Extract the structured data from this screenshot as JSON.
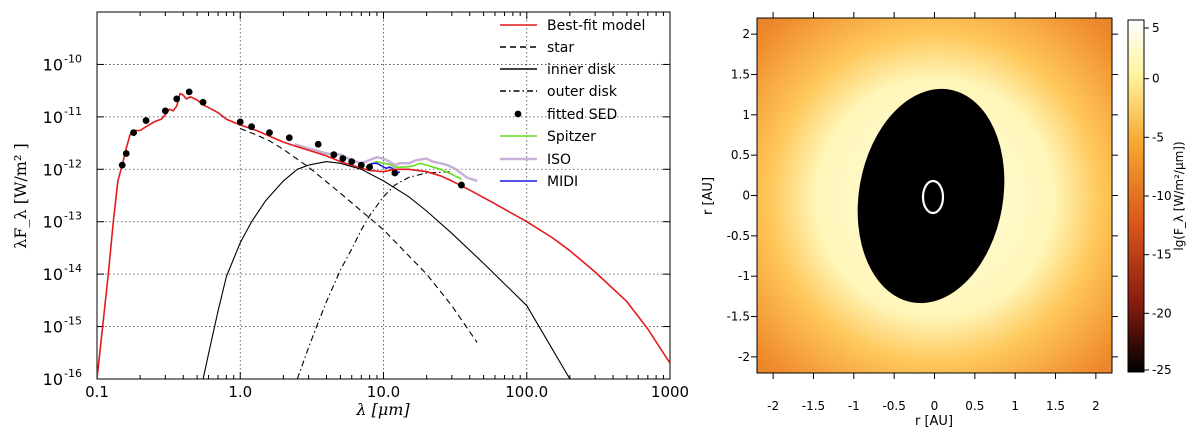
{
  "chart_data": [
    {
      "type": "line",
      "xlabel": "λ [μm]",
      "ylabel": "λF_λ [W/m² ]",
      "x_scale": "log",
      "y_scale": "log",
      "xlim": [
        0.1,
        1000
      ],
      "ylim": [
        1e-16,
        1e-09
      ],
      "xticks": [
        {
          "value": 0.1,
          "label": "0.1"
        },
        {
          "value": 1,
          "label": "1.0"
        },
        {
          "value": 10,
          "label": "10.0"
        },
        {
          "value": 100,
          "label": "100.0"
        },
        {
          "value": 1000,
          "label": "1000"
        }
      ],
      "yticks": [
        {
          "value": 1e-16,
          "base": "10",
          "exp": "-16"
        },
        {
          "value": 1e-15,
          "base": "10",
          "exp": "-15"
        },
        {
          "value": 1e-14,
          "base": "10",
          "exp": "-14"
        },
        {
          "value": 1e-13,
          "base": "10",
          "exp": "-13"
        },
        {
          "value": 1e-12,
          "base": "10",
          "exp": "-12"
        },
        {
          "value": 1e-11,
          "base": "10",
          "exp": "-11"
        },
        {
          "value": 1e-10,
          "base": "10",
          "exp": "-10"
        }
      ],
      "grid": true,
      "legend_position": "top-right",
      "series": [
        {
          "name": "Best-fit model",
          "color": "#e41a1c",
          "style": "solid",
          "x": [
            0.1,
            0.12,
            0.13,
            0.14,
            0.15,
            0.16,
            0.17,
            0.18,
            0.2,
            0.22,
            0.25,
            0.28,
            0.3,
            0.32,
            0.34,
            0.36,
            0.38,
            0.4,
            0.42,
            0.45,
            0.5,
            0.55,
            0.6,
            0.7,
            0.8,
            1.0,
            1.3,
            1.6,
            2.0,
            2.5,
            3.0,
            4.0,
            5.0,
            6.0,
            7.0,
            8.0,
            10,
            12,
            15,
            20,
            25,
            30,
            40,
            60,
            100,
            150,
            200,
            300,
            500,
            700,
            1000
          ],
          "y": [
            1e-16,
            1e-14,
            1e-13,
            6e-13,
            1.2e-12,
            2.5e-12,
            4.5e-12,
            5.5e-12,
            5.5e-12,
            6.5e-12,
            8e-12,
            9e-12,
            1.1e-11,
            1.4e-11,
            1.3e-11,
            1.6e-11,
            2.8e-11,
            2.6e-11,
            2.2e-11,
            2.4e-11,
            2.1e-11,
            1.7e-11,
            1.5e-11,
            1.2e-11,
            9e-12,
            7e-12,
            5.5e-12,
            4.3e-12,
            3.3e-12,
            2.7e-12,
            2.3e-12,
            1.8e-12,
            1.4e-12,
            1.2e-12,
            1.05e-12,
            9.5e-13,
            9e-13,
            1e-12,
            1e-12,
            9e-13,
            7.5e-13,
            6e-13,
            4e-13,
            2.2e-13,
            1e-13,
            5e-14,
            2.8e-14,
            1.1e-14,
            3e-15,
            9e-16,
            2e-16
          ]
        },
        {
          "name": "star",
          "color": "#000000",
          "style": "dashed",
          "x": [
            1.0,
            1.3,
            1.6,
            2.0,
            3.0,
            5.0,
            10,
            20,
            30,
            45
          ],
          "y": [
            6e-12,
            4.5e-12,
            3.5e-12,
            2.4e-12,
            1.1e-12,
            3.5e-13,
            7e-14,
            1e-14,
            2.5e-15,
            5e-16
          ]
        },
        {
          "name": "inner disk",
          "color": "#000000",
          "style": "solid",
          "x": [
            0.55,
            0.6,
            0.7,
            0.8,
            1.0,
            1.2,
            1.5,
            2.0,
            2.5,
            3.0,
            4.0,
            5.0,
            7.0,
            10,
            15,
            20,
            30,
            50,
            100,
            200
          ],
          "y": [
            1e-16,
            3e-16,
            2e-15,
            9e-15,
            4e-14,
            1e-13,
            2.5e-13,
            6e-13,
            1e-12,
            1.2e-12,
            1.4e-12,
            1.3e-12,
            1e-12,
            6e-13,
            3e-13,
            1.6e-13,
            6e-14,
            1.6e-14,
            2.5e-15,
            1e-16
          ]
        },
        {
          "name": "outer disk",
          "color": "#000000",
          "style": "dashdot",
          "x": [
            2.5,
            3.0,
            3.5,
            4.0,
            5.0,
            6.0,
            7.0,
            8.0,
            10,
            12,
            15,
            20,
            30
          ],
          "y": [
            1e-16,
            4e-16,
            1.2e-15,
            3e-15,
            1.2e-14,
            3e-14,
            7e-14,
            1.3e-13,
            3e-13,
            5e-13,
            7e-13,
            8.5e-13,
            9e-13
          ]
        },
        {
          "name": "fitted SED",
          "color": "#000000",
          "style": "points",
          "x": [
            0.15,
            0.16,
            0.18,
            0.22,
            0.3,
            0.36,
            0.44,
            0.55,
            1.0,
            1.2,
            1.6,
            2.2,
            3.5,
            4.5,
            5.2,
            6.0,
            7.0,
            8.0,
            12,
            35
          ],
          "y": [
            1.2e-12,
            2e-12,
            5e-12,
            8.5e-12,
            1.3e-11,
            2.2e-11,
            3e-11,
            1.9e-11,
            8e-12,
            6.5e-12,
            5e-12,
            4e-12,
            3e-12,
            1.9e-12,
            1.6e-12,
            1.4e-12,
            1.2e-12,
            1.1e-12,
            8.5e-13,
            5e-13
          ]
        },
        {
          "name": "Spitzer",
          "color": "#66dd22",
          "style": "solid",
          "x": [
            7.5,
            8.0,
            9.0,
            10,
            11,
            12,
            14,
            16,
            18,
            20,
            25,
            30,
            35
          ],
          "y": [
            1.1e-12,
            1.2e-12,
            1.4e-12,
            1.3e-12,
            1.25e-12,
            1.1e-12,
            1.1e-12,
            1.15e-12,
            1.3e-12,
            1.2e-12,
            1e-12,
            8e-13,
            6.5e-13
          ]
        },
        {
          "name": "ISO",
          "color": "#c8b0d6",
          "style": "solid",
          "x": [
            2.4,
            3,
            4,
            5,
            6,
            7,
            8,
            9,
            10,
            11,
            12,
            13,
            15,
            17,
            20,
            22,
            25,
            28,
            32,
            38,
            45
          ],
          "y": [
            3e-12,
            2.5e-12,
            2e-12,
            1.9e-12,
            1.5e-12,
            1.3e-12,
            1.5e-12,
            1.7e-12,
            1.6e-12,
            1.4e-12,
            1.2e-12,
            1.3e-12,
            1.3e-12,
            1.5e-12,
            1.6e-12,
            1.4e-12,
            1.3e-12,
            1.2e-12,
            1e-12,
            7e-13,
            6e-13
          ]
        },
        {
          "name": "MIDI",
          "color": "#1a1ae6",
          "style": "solid",
          "x": [
            8.0,
            8.5,
            9.0,
            9.5,
            10,
            10.5,
            11,
            11.5,
            12,
            12.5,
            13
          ],
          "y": [
            1.25e-12,
            1.3e-12,
            1.3e-12,
            1.2e-12,
            1.1e-12,
            1.05e-12,
            1.1e-12,
            1.05e-12,
            9.5e-13,
            8.5e-13,
            9e-13
          ]
        }
      ]
    },
    {
      "type": "heatmap",
      "xlabel": "r [AU]",
      "ylabel": "r [AU]",
      "xlim": [
        -2.2,
        2.2
      ],
      "ylim": [
        -2.2,
        2.2
      ],
      "xticks": [
        "-2",
        "-1.5",
        "-1",
        "-0.5",
        "0",
        "0.5",
        "1",
        "1.5",
        "2"
      ],
      "yticks": [
        "2",
        "1.5",
        "1",
        "0.5",
        "0",
        "-0.5",
        "-1",
        "-1.5",
        "-2"
      ],
      "colorbar": {
        "label": "lg(F_λ [W/m²/μm])",
        "ticks": [
          "5",
          "0",
          "-5",
          "-10",
          "-15",
          "-20",
          "-25"
        ],
        "range": [
          -25,
          5
        ]
      },
      "features": {
        "dark_ellipse": {
          "center": [
            -0.05,
            -0.05
          ],
          "semi_axes": [
            0.95,
            1.32
          ],
          "tilt_deg": 10,
          "value": -25
        },
        "inner_ring": {
          "center": [
            -0.02,
            0.0
          ],
          "semi_axes": [
            0.12,
            0.2
          ]
        }
      }
    }
  ]
}
